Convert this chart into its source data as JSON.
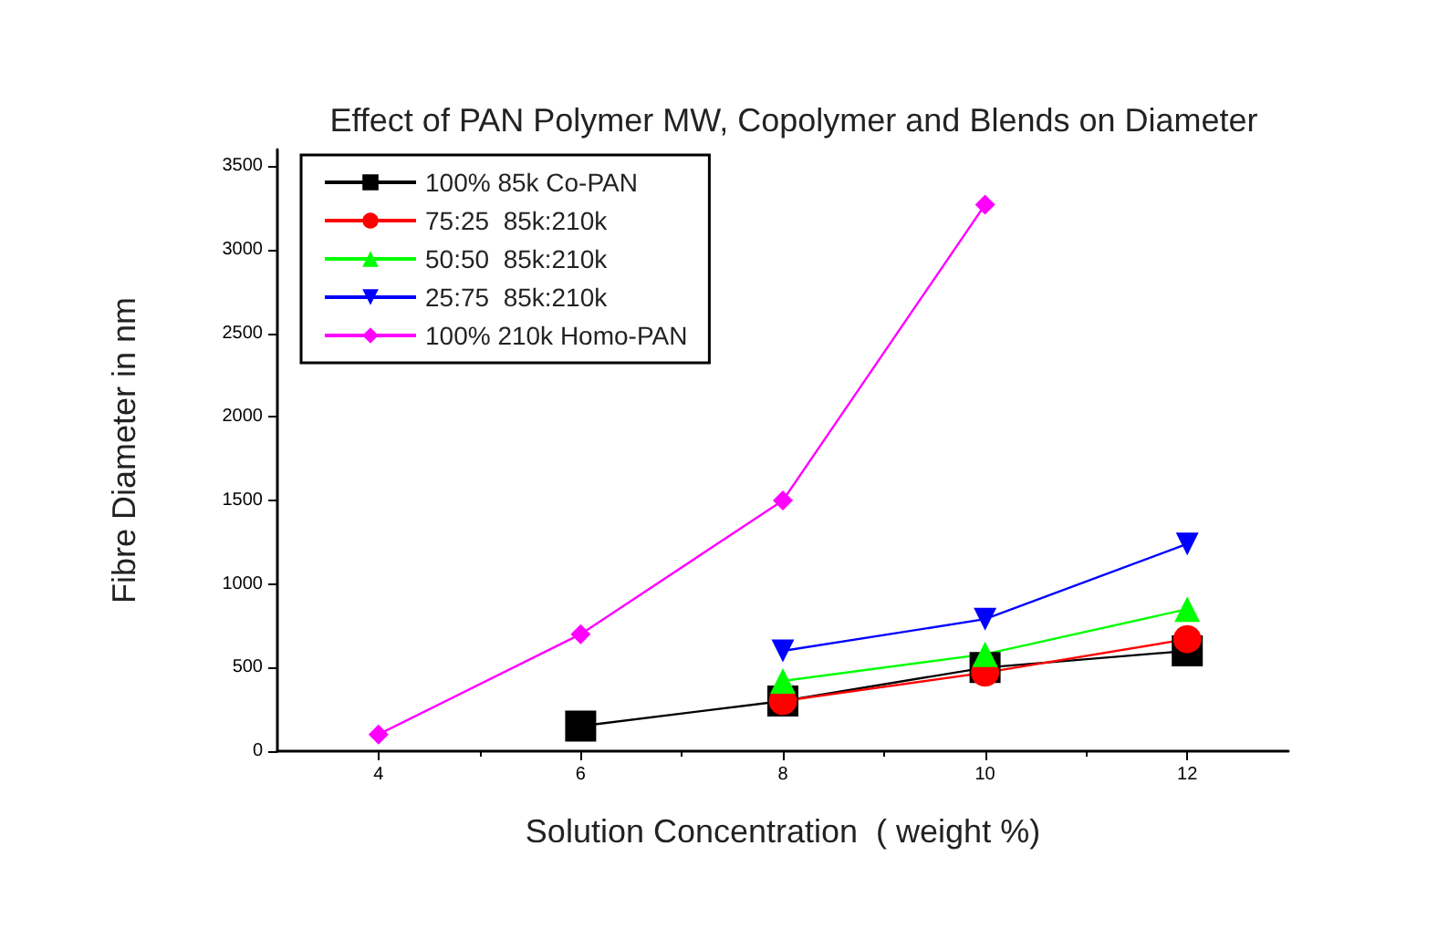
{
  "chart_data": {
    "type": "line",
    "title": "Effect of PAN Polymer MW, Copolymer and Blends on Diameter",
    "xlabel": "Solution Concentration  ( weight %)",
    "ylabel": "Fibre Diameter in nm",
    "x": [
      4,
      6,
      8,
      10,
      12
    ],
    "series": [
      {
        "name": "100% 85k Co-PAN",
        "color": "#000000",
        "marker": "square",
        "values": [
          null,
          150,
          300,
          500,
          600
        ]
      },
      {
        "name": "75:25  85k:210k",
        "color": "#ff0000",
        "marker": "circle",
        "values": [
          null,
          null,
          300,
          470,
          670
        ]
      },
      {
        "name": "50:50  85k:210k",
        "color": "#00ff00",
        "marker": "triangle",
        "values": [
          null,
          null,
          420,
          580,
          850
        ]
      },
      {
        "name": "25:75  85k:210k",
        "color": "#0000ff",
        "marker": "triangle-down",
        "values": [
          null,
          null,
          600,
          790,
          1240
        ]
      },
      {
        "name": "100% 210k Homo-PAN",
        "color": "#ff00ff",
        "marker": "diamond",
        "values": [
          100,
          700,
          1500,
          3270,
          null
        ]
      }
    ],
    "xlim": [
      3,
      13
    ],
    "xticks": [
      4,
      6,
      8,
      10,
      12
    ],
    "ylim": [
      0,
      3600
    ],
    "yticks": [
      0,
      500,
      1000,
      1500,
      2000,
      2500,
      3000,
      3500
    ],
    "grid": false,
    "legend": "top left"
  }
}
